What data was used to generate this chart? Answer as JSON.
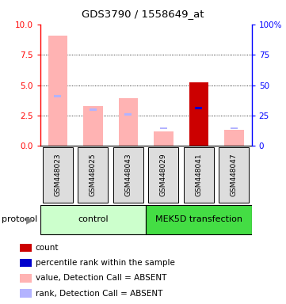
{
  "title": "GDS3790 / 1558649_at",
  "samples": [
    "GSM448023",
    "GSM448025",
    "GSM448043",
    "GSM448029",
    "GSM448041",
    "GSM448047"
  ],
  "value_absent": [
    9.1,
    3.25,
    3.9,
    1.2,
    0.0,
    1.3
  ],
  "rank_absent": [
    4.1,
    3.0,
    2.6,
    1.45,
    0.0,
    1.45
  ],
  "count_present": [
    0.0,
    0.0,
    0.0,
    0.0,
    5.2,
    0.0
  ],
  "percentile_present": [
    0.0,
    0.0,
    0.0,
    0.0,
    3.1,
    0.0
  ],
  "color_value_absent": "#ffb3b3",
  "color_rank_absent": "#b3b3ff",
  "color_count": "#cc0000",
  "color_percentile": "#0000cc",
  "ylim_left": [
    0,
    10
  ],
  "ylim_right": [
    0,
    100
  ],
  "yticks_left": [
    0,
    2.5,
    5.0,
    7.5,
    10
  ],
  "yticks_right": [
    0,
    25,
    50,
    75,
    100
  ],
  "yticklabels_right": [
    "0",
    "25",
    "50",
    "75",
    "100%"
  ],
  "bar_width": 0.55,
  "rank_bar_width": 0.2,
  "rank_bar_height": 0.18,
  "protocol_label": "protocol",
  "control_color": "#ccffcc",
  "transfection_color": "#44dd44",
  "sample_box_color": "#dddddd",
  "legend_items": [
    {
      "label": "count",
      "color": "#cc0000"
    },
    {
      "label": "percentile rank within the sample",
      "color": "#0000cc"
    },
    {
      "label": "value, Detection Call = ABSENT",
      "color": "#ffb3b3"
    },
    {
      "label": "rank, Detection Call = ABSENT",
      "color": "#b3b3ff"
    }
  ]
}
